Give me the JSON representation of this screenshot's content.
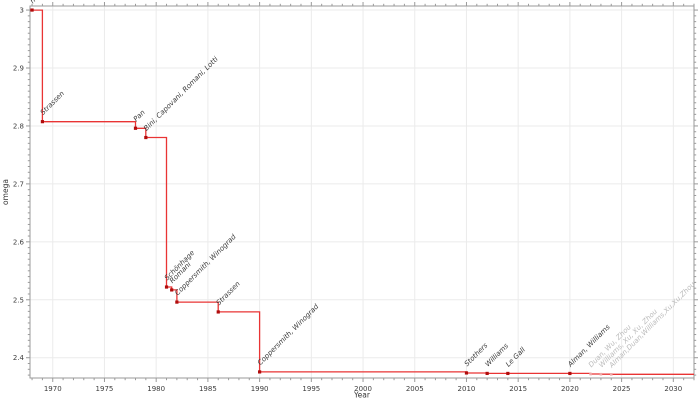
{
  "chart_data": {
    "type": "line",
    "subtype": "step-after",
    "title": "",
    "xlabel": "Year",
    "ylabel": "omega",
    "xlim": [
      1967.8,
      2032
    ],
    "ylim": [
      2.365,
      3.007
    ],
    "x_major_ticks": [
      1970,
      1975,
      1980,
      1985,
      1990,
      1995,
      2000,
      2005,
      2010,
      2015,
      2020,
      2025,
      2030
    ],
    "y_major_ticks": [
      2.4,
      2.5,
      2.6,
      2.7,
      2.8,
      2.9,
      3
    ],
    "grid": true,
    "legend": "none",
    "colors": {
      "line": "#e93434",
      "marker": "#b00d0d",
      "muted_marker": "#f0a6a6",
      "label": "#3c3c3c",
      "muted_label": "#bbbbbb",
      "grid": "#ebebeb",
      "spine": "#9a9a9a",
      "tick_label": "#3c3c3c",
      "axis_title": "#333333",
      "background": "#ffffff"
    },
    "points": [
      {
        "label": "naive",
        "year": 1968,
        "omega": 3,
        "muted": false
      },
      {
        "label": "Strassen",
        "year": 1969,
        "omega": 2.8074,
        "muted": false
      },
      {
        "label": "Pan",
        "year": 1978,
        "omega": 2.796,
        "muted": false
      },
      {
        "label": "Bini, Capovani, Romani, Lotti",
        "year": 1979,
        "omega": 2.78,
        "muted": false
      },
      {
        "label": "Schönhage",
        "year": 1981,
        "omega": 2.522,
        "muted": false
      },
      {
        "label": "Romani",
        "year": 1981.5,
        "omega": 2.517,
        "muted": false
      },
      {
        "label": "Coppersmith, Winograd",
        "year": 1982,
        "omega": 2.496,
        "muted": false
      },
      {
        "label": "Strassen",
        "year": 1986,
        "omega": 2.479,
        "muted": false
      },
      {
        "label": "Coppersmith, Winograd",
        "year": 1990,
        "omega": 2.3755,
        "muted": false
      },
      {
        "label": "Stothers",
        "year": 2010,
        "omega": 2.3737,
        "muted": false
      },
      {
        "label": "Williams",
        "year": 2012,
        "omega": 2.3729,
        "muted": false
      },
      {
        "label": "Le Gall",
        "year": 2014,
        "omega": 2.3728639,
        "muted": false
      },
      {
        "label": "Alman, Williams",
        "year": 2020,
        "omega": 2.3728596,
        "muted": false
      },
      {
        "label": "Duan, Wu, Zhou",
        "year": 2022,
        "omega": 2.371866,
        "muted": true
      },
      {
        "label": "Williams, Xu, Xu, Zhou",
        "year": 2023,
        "omega": 2.371552,
        "muted": true
      },
      {
        "label": "Alman,Duan,Williams,Xu,Xu,Zhou",
        "year": 2024,
        "omega": 2.371339,
        "muted": true
      }
    ]
  }
}
